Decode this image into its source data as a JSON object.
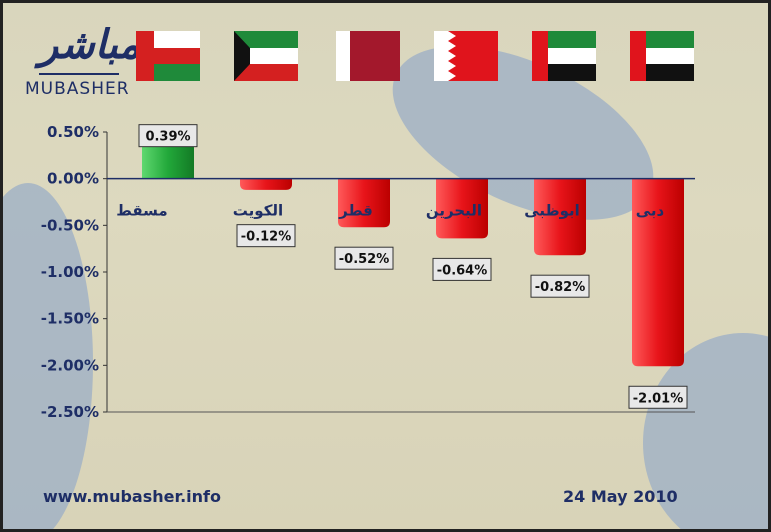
{
  "logo": {
    "arabic": "مباشر",
    "latin": "MUBASHER"
  },
  "footer": {
    "website": "www.mubasher.info",
    "date": "24 May 2010"
  },
  "chart_data": {
    "type": "bar",
    "categories": [
      "مسقط",
      "الكويت",
      "قطر",
      "البحرين",
      "ابوظبى",
      "دبى"
    ],
    "flags": [
      "Oman",
      "Kuwait",
      "Qatar",
      "Bahrain",
      "UAE",
      "UAE"
    ],
    "values": [
      0.39,
      -0.12,
      -0.52,
      -0.64,
      -0.82,
      -2.01
    ],
    "value_labels": [
      "0.39%",
      "-0.12%",
      "-0.52%",
      "-0.64%",
      "-0.82%",
      "-2.01%"
    ],
    "ylim": [
      -2.5,
      0.5
    ],
    "yticks": [
      "0.50%",
      "0.00%",
      "-0.50%",
      "-1.00%",
      "-1.50%",
      "-2.00%",
      "-2.50%"
    ],
    "colors": {
      "positive": "#22a83a",
      "negative": "#e8141a"
    },
    "grid": false
  }
}
